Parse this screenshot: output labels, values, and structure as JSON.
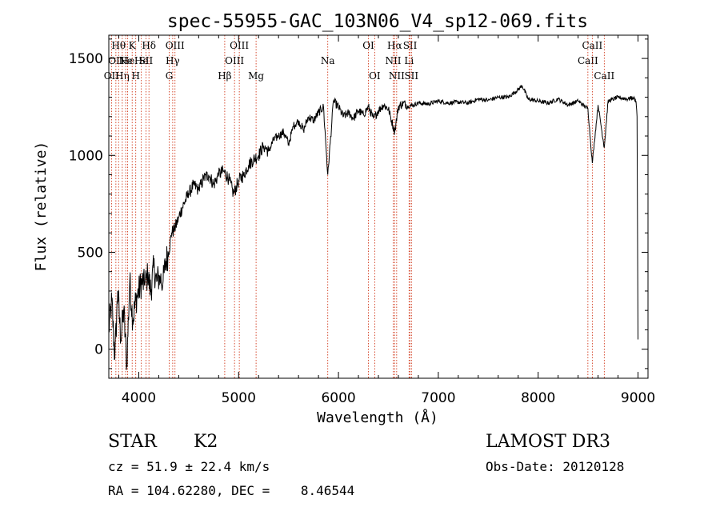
{
  "chart_data": {
    "type": "line",
    "title": "spec-55955-GAC_103N06_V4_sp12-069.fits",
    "xlabel": "Wavelength (Å)",
    "ylabel": "Flux (relative)",
    "xlim": [
      3700,
      9100
    ],
    "ylim": [
      -150,
      1620
    ],
    "xticks": [
      4000,
      5000,
      6000,
      7000,
      8000,
      9000
    ],
    "yticks": [
      0,
      500,
      1000,
      1500
    ],
    "xtick_labels": [
      "4000",
      "5000",
      "6000",
      "7000",
      "8000",
      "9000"
    ],
    "ytick_labels": [
      "0",
      "500",
      "1000",
      "1500"
    ],
    "series": [
      {
        "name": "flux",
        "x": [
          3700,
          3730,
          3760,
          3790,
          3820,
          3850,
          3880,
          3910,
          3940,
          3970,
          4000,
          4030,
          4060,
          4090,
          4120,
          4150,
          4180,
          4210,
          4240,
          4270,
          4300,
          4330,
          4360,
          4400,
          4450,
          4500,
          4550,
          4600,
          4650,
          4700,
          4750,
          4800,
          4850,
          4900,
          4950,
          5000,
          5050,
          5100,
          5150,
          5200,
          5250,
          5300,
          5350,
          5400,
          5450,
          5500,
          5550,
          5600,
          5650,
          5700,
          5750,
          5800,
          5850,
          5893,
          5950,
          6000,
          6050,
          6100,
          6150,
          6200,
          6250,
          6300,
          6350,
          6400,
          6450,
          6500,
          6563,
          6600,
          6650,
          6700,
          6750,
          6800,
          6900,
          7000,
          7100,
          7200,
          7300,
          7400,
          7500,
          7600,
          7700,
          7800,
          7840,
          7900,
          8000,
          8100,
          8200,
          8300,
          8400,
          8498,
          8542,
          8600,
          8662,
          8700,
          8800,
          8900,
          8950,
          8980,
          8990,
          9000
        ],
        "y": [
          100,
          250,
          -50,
          300,
          50,
          200,
          -80,
          350,
          150,
          250,
          300,
          350,
          330,
          380,
          300,
          420,
          350,
          380,
          330,
          450,
          500,
          600,
          620,
          680,
          750,
          800,
          850,
          820,
          880,
          900,
          850,
          900,
          920,
          880,
          800,
          870,
          900,
          950,
          980,
          1000,
          1050,
          1020,
          1080,
          1100,
          1120,
          1060,
          1150,
          1180,
          1130,
          1200,
          1180,
          1220,
          1250,
          900,
          1280,
          1250,
          1200,
          1220,
          1190,
          1230,
          1210,
          1250,
          1190,
          1230,
          1260,
          1240,
          1120,
          1250,
          1270,
          1255,
          1260,
          1270,
          1265,
          1280,
          1270,
          1275,
          1270,
          1290,
          1285,
          1300,
          1300,
          1340,
          1360,
          1290,
          1280,
          1270,
          1290,
          1260,
          1280,
          1240,
          960,
          1260,
          1040,
          1280,
          1300,
          1290,
          1300,
          1280,
          1200,
          50
        ]
      }
    ],
    "lines": [
      {
        "x": 3727,
        "label": "OII",
        "row": 2
      },
      {
        "x": 3771,
        "label": "OII",
        "row": 1
      },
      {
        "x": 3798,
        "label": "Hθ",
        "row": 0
      },
      {
        "x": 3835,
        "label": "Hη",
        "row": 2
      },
      {
        "x": 3869,
        "label": "Ne",
        "row": 1
      },
      {
        "x": 3889,
        "label": "He",
        "row": 1
      },
      {
        "x": 3934,
        "label": "K",
        "row": 0
      },
      {
        "x": 3970,
        "label": "H",
        "row": 2
      },
      {
        "x": 4026,
        "label": "He",
        "row": 1
      },
      {
        "x": 4072,
        "label": "SII",
        "row": 1
      },
      {
        "x": 4102,
        "label": "Hδ",
        "row": 0
      },
      {
        "x": 4305,
        "label": "G",
        "row": 2
      },
      {
        "x": 4340,
        "label": "Hγ",
        "row": 1
      },
      {
        "x": 4363,
        "label": "OIII",
        "row": 0
      },
      {
        "x": 4861,
        "label": "Hβ",
        "row": 2
      },
      {
        "x": 4959,
        "label": "OIII",
        "row": 1
      },
      {
        "x": 5007,
        "label": "OIII",
        "row": 0
      },
      {
        "x": 5175,
        "label": "Mg",
        "row": 2
      },
      {
        "x": 5893,
        "label": "Na",
        "row": 1
      },
      {
        "x": 6300,
        "label": "OI",
        "row": 0
      },
      {
        "x": 6363,
        "label": "OI",
        "row": 2
      },
      {
        "x": 6548,
        "label": "NII",
        "row": 1
      },
      {
        "x": 6563,
        "label": "Hα",
        "row": 0
      },
      {
        "x": 6583,
        "label": "NII",
        "row": 2
      },
      {
        "x": 6707,
        "label": "Li",
        "row": 1
      },
      {
        "x": 6717,
        "label": "SII",
        "row": 0
      },
      {
        "x": 6731,
        "label": "SII",
        "row": 2
      },
      {
        "x": 8498,
        "label": "CaII",
        "row": 1
      },
      {
        "x": 8542,
        "label": "CaII",
        "row": 0
      },
      {
        "x": 8662,
        "label": "CaII",
        "row": 2
      }
    ]
  },
  "info": {
    "class": "STAR",
    "subclass": "K2",
    "survey": "LAMOST DR3",
    "cz": "cz = 51.9 ± 22.4 km/s",
    "obs_date": "Obs-Date: 20120128",
    "radec": "RA = 104.62280, DEC =    8.46544"
  },
  "colors": {
    "line_marker": "#cc2200",
    "spectrum": "#000000",
    "axes": "#000000"
  }
}
